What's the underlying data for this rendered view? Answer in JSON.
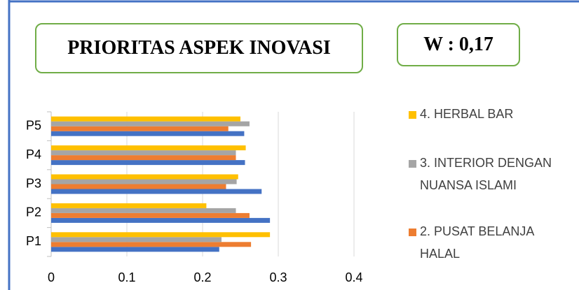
{
  "chart_data": {
    "type": "barh",
    "title": "PRIORITAS ASPEK INOVASI",
    "annotation": "W : 0,17",
    "categories": [
      "P1",
      "P2",
      "P3",
      "P4",
      "P5"
    ],
    "series": [
      {
        "color": "#4472c4",
        "values": [
          0.222,
          0.289,
          0.278,
          0.256,
          0.255
        ]
      },
      {
        "name": "2. PUSAT BELANJA HALAL",
        "color": "#ed7d31",
        "values": [
          0.264,
          0.262,
          0.231,
          0.244,
          0.234
        ]
      },
      {
        "name": "3. INTERIOR DENGAN NUANSA ISLAMI",
        "color": "#a5a5a5",
        "values": [
          0.225,
          0.244,
          0.245,
          0.244,
          0.262
        ]
      },
      {
        "name": "4. HERBAL BAR",
        "color": "#ffc000",
        "values": [
          0.289,
          0.205,
          0.247,
          0.257,
          0.25
        ]
      }
    ],
    "xlim": [
      0,
      0.4
    ],
    "xticks": [
      0,
      0.1,
      0.2,
      0.3,
      0.4
    ],
    "grid": true
  }
}
